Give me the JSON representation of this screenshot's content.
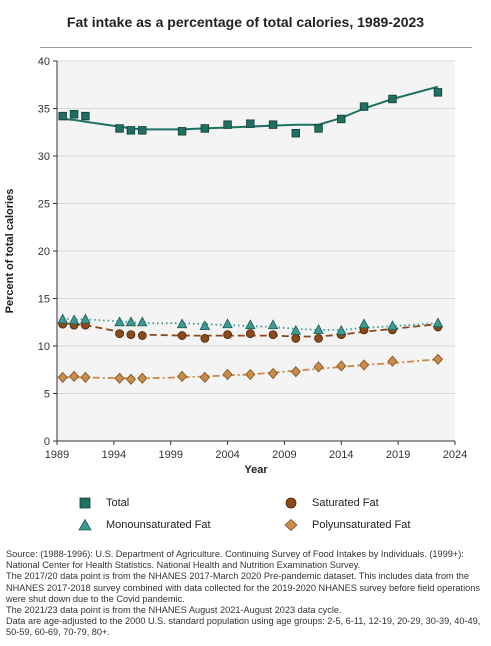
{
  "title": "Fat intake as a percentage of total calories, 1989-2023",
  "footnote": [
    "Source: (1988-1996): U.S. Department of Agriculture. Continuing Survey of Food Intakes by Individuals. (1999+): National Center for Health Statistics. National Health and Nutrition Examination Survey.",
    "The 2017/20 data point is from the NHANES 2017-March 2020 Pre-pandemic dataset. This includes data from the NHANES 2017-2018 survey combined with data collected for the 2019-2020 NHANES survey before field operations were shut down due to the Covid pandemic.",
    "The 2021/23 data point is from the NHANES August 2021-August 2023 data cycle.",
    "Data are age-adjusted to the 2000 U.S. standard population using age groups: 2-5, 6-11, 12-19, 20-29, 30-39, 40-49, 50-59, 60-69, 70-79, 80+."
  ],
  "colors": {
    "total": "#1f6f62",
    "saturated": "#8b4a1c",
    "mono": "#3e9a92",
    "poly": "#c98c4a",
    "plot_bg": "#f4f4f4",
    "grid": "#cfcfcf"
  },
  "chart_data": {
    "type": "scatter",
    "title": "Fat intake as a percentage of total calories, 1989-2023",
    "xlabel": "Year",
    "ylabel": "Percent of total calories",
    "xlim": [
      1989,
      2024
    ],
    "ylim": [
      0,
      40
    ],
    "xticks": [
      1989,
      1994,
      1999,
      2004,
      2009,
      2014,
      2019,
      2024
    ],
    "yticks": [
      0,
      5,
      10,
      15,
      20,
      25,
      30,
      35,
      40
    ],
    "grid": "horizontal",
    "series": [
      {
        "name": "Total",
        "marker": "square",
        "x": [
          1989.5,
          1990.5,
          1991.5,
          1994.5,
          1995.5,
          1996.5,
          2000,
          2002,
          2004,
          2006,
          2008,
          2010,
          2012,
          2014,
          2016,
          2018.5,
          2022.5
        ],
        "y": [
          34.2,
          34.4,
          34.2,
          32.9,
          32.7,
          32.7,
          32.6,
          32.9,
          33.3,
          33.4,
          33.3,
          32.4,
          32.9,
          33.9,
          35.2,
          36.0,
          36.7
        ],
        "trend": [
          33.9,
          33.8,
          33.6,
          33.1,
          32.9,
          32.8,
          32.8,
          32.9,
          33.0,
          33.1,
          33.2,
          33.3,
          33.3,
          34.0,
          35.0,
          36.0,
          37.3
        ],
        "trend_style": "solid"
      },
      {
        "name": "Saturated Fat",
        "marker": "circle",
        "x": [
          1989.5,
          1990.5,
          1991.5,
          1994.5,
          1995.5,
          1996.5,
          2000,
          2002,
          2004,
          2006,
          2008,
          2010,
          2012,
          2014,
          2016,
          2018.5,
          2022.5
        ],
        "y": [
          12.3,
          12.2,
          12.2,
          11.3,
          11.2,
          11.1,
          11.1,
          10.8,
          11.2,
          11.3,
          11.2,
          10.8,
          10.8,
          11.2,
          11.7,
          11.7,
          12.0
        ],
        "trend": [
          12.4,
          12.3,
          12.2,
          11.5,
          11.3,
          11.2,
          11.1,
          11.1,
          11.1,
          11.1,
          11.1,
          11.0,
          11.0,
          11.2,
          11.5,
          11.8,
          12.3
        ],
        "trend_style": "dashed"
      },
      {
        "name": "Monounsaturated Fat",
        "marker": "triangle",
        "x": [
          1989.5,
          1990.5,
          1991.5,
          1994.5,
          1995.5,
          1996.5,
          2000,
          2002,
          2004,
          2006,
          2008,
          2010,
          2012,
          2014,
          2016,
          2018.5,
          2022.5
        ],
        "y": [
          12.8,
          12.7,
          12.8,
          12.5,
          12.5,
          12.5,
          12.3,
          12.1,
          12.3,
          12.2,
          12.2,
          11.6,
          11.7,
          11.6,
          12.3,
          12.1,
          12.4
        ],
        "trend": [
          12.9,
          12.8,
          12.8,
          12.6,
          12.5,
          12.4,
          12.4,
          12.3,
          12.2,
          12.1,
          12.0,
          11.8,
          11.7,
          11.7,
          11.9,
          12.1,
          12.4
        ],
        "trend_style": "dotted"
      },
      {
        "name": "Polyunsaturated Fat",
        "marker": "diamond",
        "x": [
          1989.5,
          1990.5,
          1991.5,
          1994.5,
          1995.5,
          1996.5,
          2000,
          2002,
          2004,
          2006,
          2008,
          2010,
          2012,
          2014,
          2016,
          2018.5,
          2022.5
        ],
        "y": [
          6.7,
          6.8,
          6.7,
          6.6,
          6.5,
          6.6,
          6.8,
          6.7,
          7.0,
          7.0,
          7.1,
          7.3,
          7.8,
          7.9,
          8.0,
          8.4,
          8.6
        ],
        "trend": [
          6.7,
          6.7,
          6.7,
          6.6,
          6.6,
          6.6,
          6.7,
          6.8,
          6.9,
          7.0,
          7.2,
          7.4,
          7.6,
          7.8,
          8.0,
          8.2,
          8.6
        ],
        "trend_style": "dashdot"
      }
    ],
    "legend": {
      "placement": "bottom",
      "entries": [
        "Total",
        "Saturated Fat",
        "Monounsaturated Fat",
        "Polyunsaturated Fat"
      ]
    }
  }
}
